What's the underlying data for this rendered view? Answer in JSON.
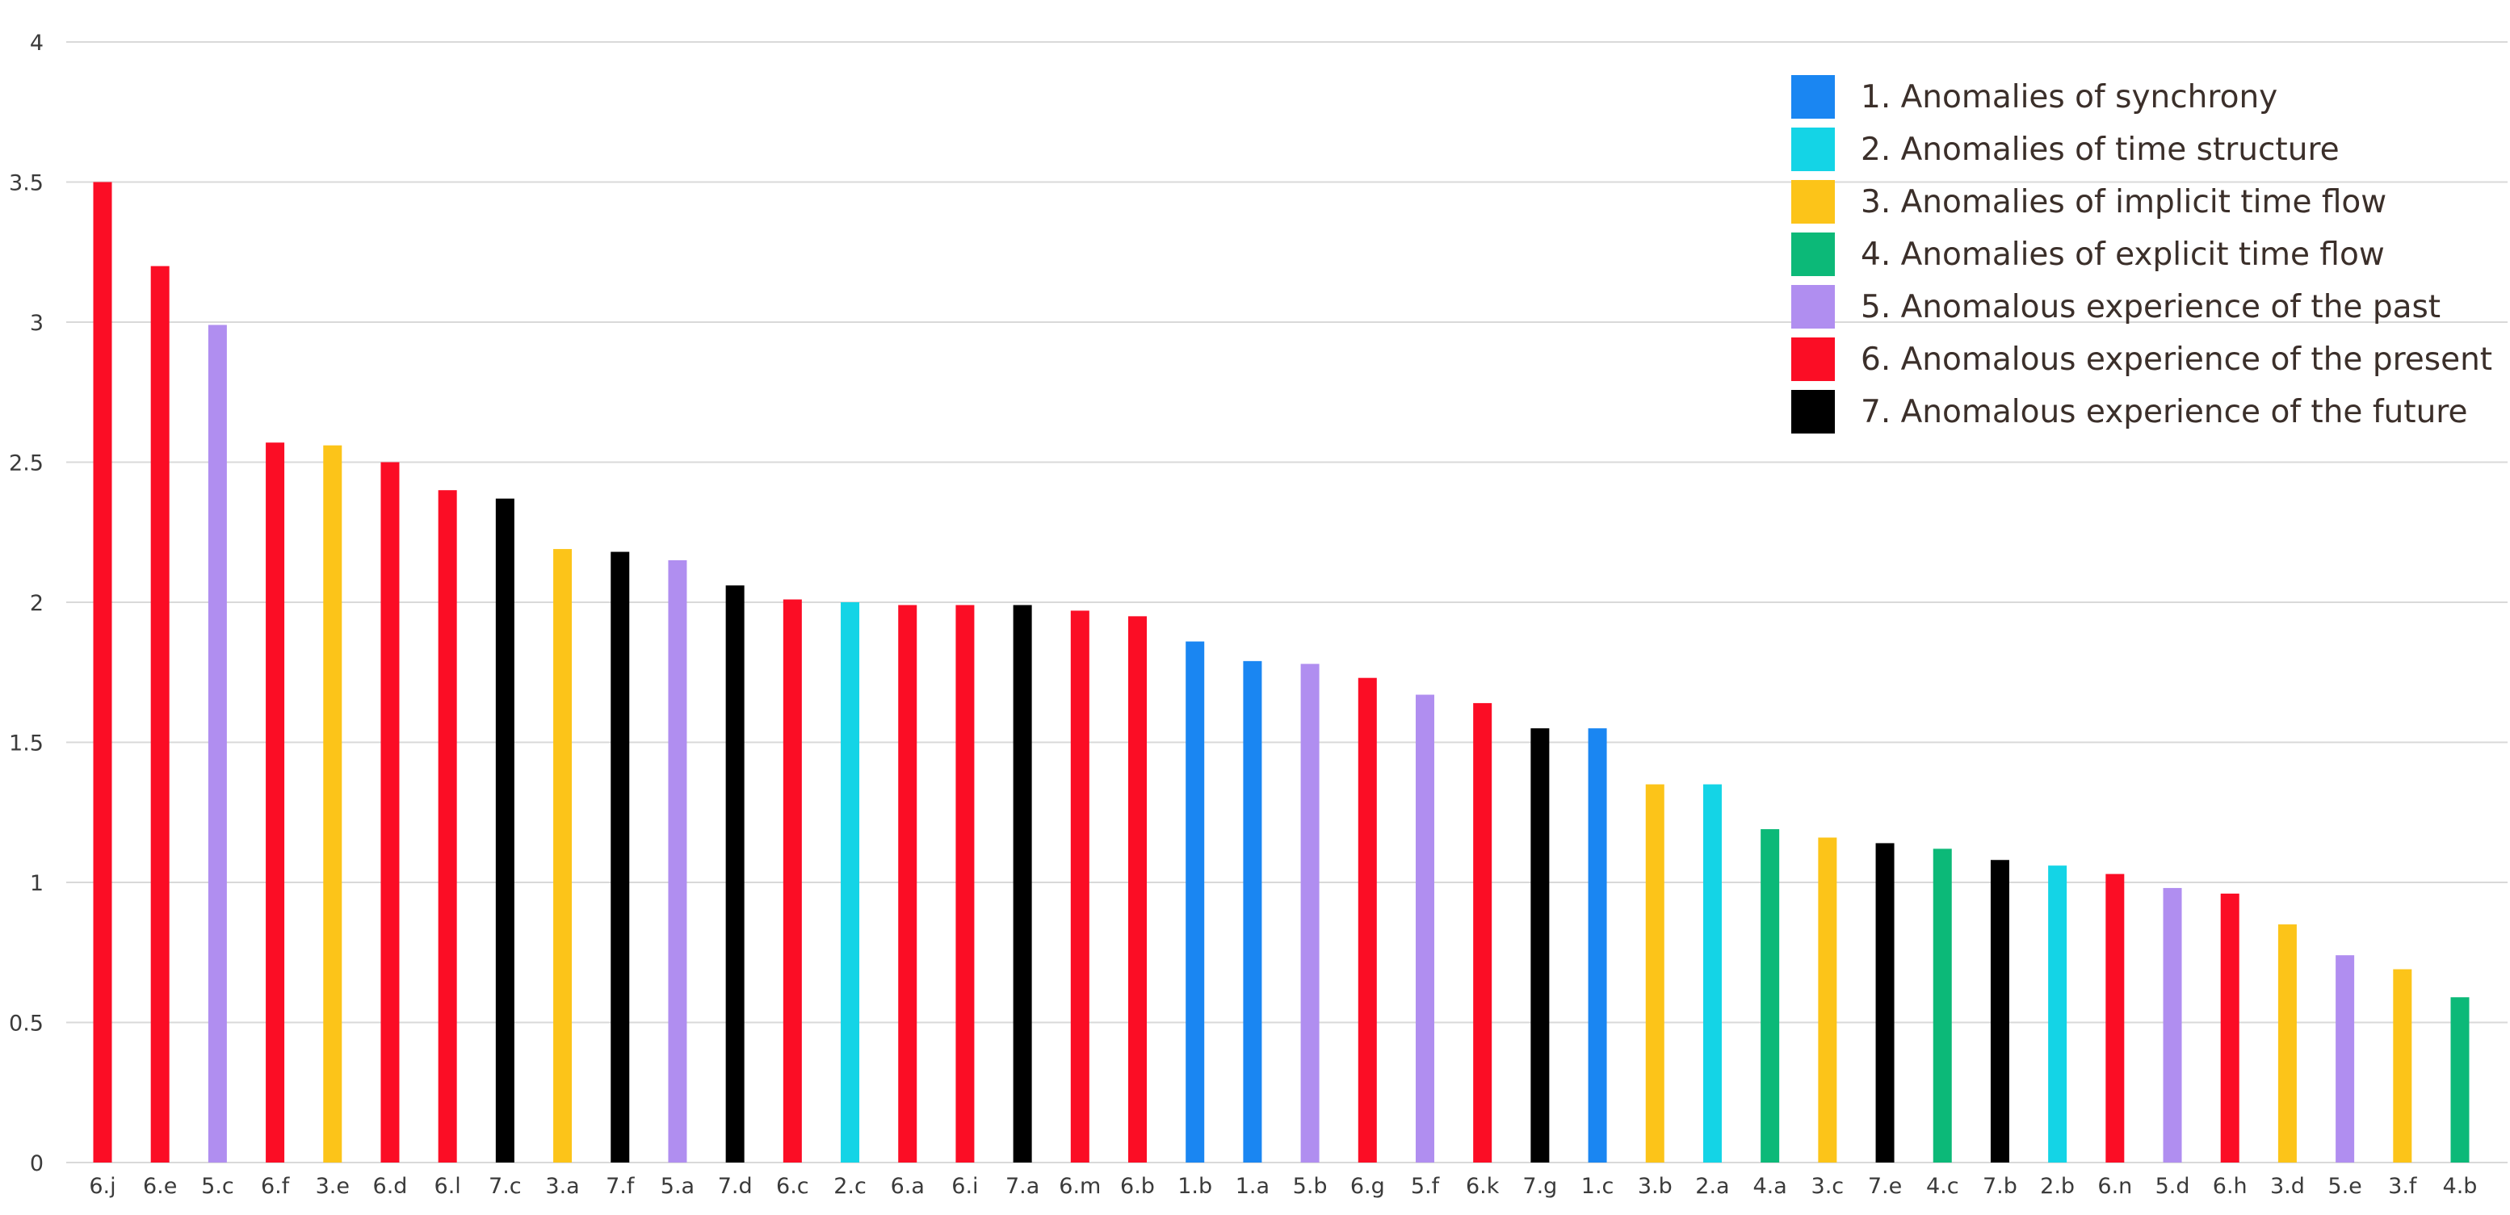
{
  "chart_data": {
    "type": "bar",
    "title": "",
    "xlabel": "",
    "ylabel": "",
    "ylim": [
      0,
      4
    ],
    "y_ticks": [
      "0",
      "0.5",
      "1",
      "1.5",
      "2",
      "2.5",
      "3",
      "3.5",
      "4"
    ],
    "grid": true,
    "legend_position": "top-right",
    "groups": [
      {
        "id": "1",
        "name": "1. Anomalies of synchrony",
        "color": "#1a86f2"
      },
      {
        "id": "2",
        "name": "2. Anomalies of time structure",
        "color": "#14d4e6"
      },
      {
        "id": "3",
        "name": "3. Anomalies of implicit time flow",
        "color": "#fcc419"
      },
      {
        "id": "4",
        "name": "4. Anomalies of explicit time flow",
        "color": "#0cb978"
      },
      {
        "id": "5",
        "name": "5. Anomalous experience of the past",
        "color": "#b08ef0"
      },
      {
        "id": "6",
        "name": "6. Anomalous experience of the present",
        "color": "#fb0d25"
      },
      {
        "id": "7",
        "name": "7. Anomalous experience of the future",
        "color": "#000000"
      }
    ],
    "bars": [
      {
        "category": "6.j",
        "value": 3.5
      },
      {
        "category": "6.e",
        "value": 3.2
      },
      {
        "category": "5.c",
        "value": 2.99
      },
      {
        "category": "6.f",
        "value": 2.57
      },
      {
        "category": "3.e",
        "value": 2.56
      },
      {
        "category": "6.d",
        "value": 2.5
      },
      {
        "category": "6.l",
        "value": 2.4
      },
      {
        "category": "7.c",
        "value": 2.37
      },
      {
        "category": "3.a",
        "value": 2.19
      },
      {
        "category": "7.f",
        "value": 2.18
      },
      {
        "category": "5.a",
        "value": 2.15
      },
      {
        "category": "7.d",
        "value": 2.06
      },
      {
        "category": "6.c",
        "value": 2.01
      },
      {
        "category": "2.c",
        "value": 2.0
      },
      {
        "category": "6.a",
        "value": 1.99
      },
      {
        "category": "6.i",
        "value": 1.99
      },
      {
        "category": "7.a",
        "value": 1.99
      },
      {
        "category": "6.m",
        "value": 1.97
      },
      {
        "category": "6.b",
        "value": 1.95
      },
      {
        "category": "1.b",
        "value": 1.86
      },
      {
        "category": "1.a",
        "value": 1.79
      },
      {
        "category": "5.b",
        "value": 1.78
      },
      {
        "category": "6.g",
        "value": 1.73
      },
      {
        "category": "5.f",
        "value": 1.67
      },
      {
        "category": "6.k",
        "value": 1.64
      },
      {
        "category": "7.g",
        "value": 1.55
      },
      {
        "category": "1.c",
        "value": 1.55
      },
      {
        "category": "3.b",
        "value": 1.35
      },
      {
        "category": "2.a",
        "value": 1.35
      },
      {
        "category": "4.a",
        "value": 1.19
      },
      {
        "category": "3.c",
        "value": 1.16
      },
      {
        "category": "7.e",
        "value": 1.14
      },
      {
        "category": "4.c",
        "value": 1.12
      },
      {
        "category": "7.b",
        "value": 1.08
      },
      {
        "category": "2.b",
        "value": 1.06
      },
      {
        "category": "6.n",
        "value": 1.03
      },
      {
        "category": "5.d",
        "value": 0.98
      },
      {
        "category": "6.h",
        "value": 0.96
      },
      {
        "category": "3.d",
        "value": 0.85
      },
      {
        "category": "5.e",
        "value": 0.74
      },
      {
        "category": "3.f",
        "value": 0.69
      },
      {
        "category": "4.b",
        "value": 0.59
      }
    ]
  }
}
